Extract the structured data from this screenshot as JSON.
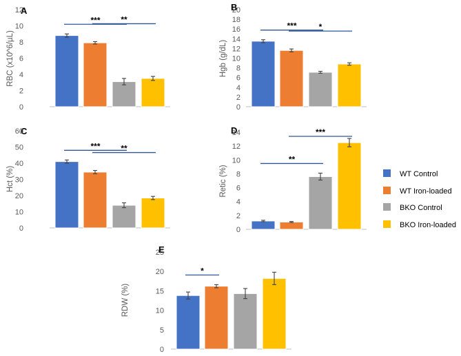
{
  "colors": {
    "WT Control": "#4472c4",
    "WT Iron-loaded": "#ed7d31",
    "BKO Control": "#a5a5a5",
    "BKO Iron-loaded": "#ffc000",
    "bar_outline": "#ffffff",
    "sig_line": "#2f5597"
  },
  "legend": {
    "entries": [
      "WT Control",
      "WT Iron-loaded",
      "BKO Control",
      "BKO Iron-loaded"
    ]
  },
  "chart_data": [
    {
      "panel": "A",
      "type": "bar",
      "ylabel": "RBC (x10^6/µL)",
      "ylim": [
        0,
        12
      ],
      "yticks": [
        0,
        2,
        4,
        6,
        8,
        10,
        12
      ],
      "categories": [
        "WT Control",
        "WT Iron-loaded",
        "BKO Control",
        "BKO Iron-loaded"
      ],
      "values": [
        8.8,
        7.9,
        3.1,
        3.5
      ],
      "errors": [
        0.2,
        0.15,
        0.4,
        0.25
      ],
      "significance": [
        {
          "from": 0,
          "to": 2,
          "label": "***"
        },
        {
          "from": 1,
          "to": 3,
          "label": "**"
        }
      ]
    },
    {
      "panel": "B",
      "type": "bar",
      "ylabel": "Hgb (g/dL)",
      "ylim": [
        0,
        20
      ],
      "yticks": [
        0,
        2,
        4,
        6,
        8,
        10,
        12,
        14,
        16,
        18,
        20
      ],
      "categories": [
        "WT Control",
        "WT Iron-loaded",
        "BKO Control",
        "BKO Iron-loaded"
      ],
      "values": [
        13.5,
        11.6,
        7.1,
        8.8
      ],
      "errors": [
        0.3,
        0.3,
        0.2,
        0.25
      ],
      "significance": [
        {
          "from": 0,
          "to": 2,
          "label": "***"
        },
        {
          "from": 1,
          "to": 3,
          "label": "*"
        }
      ]
    },
    {
      "panel": "C",
      "type": "bar",
      "ylabel": "Hct (%)",
      "ylim": [
        0,
        60
      ],
      "yticks": [
        0,
        10,
        20,
        30,
        40,
        50,
        60
      ],
      "categories": [
        "WT Control",
        "WT Iron-loaded",
        "BKO Control",
        "BKO Iron-loaded"
      ],
      "values": [
        41,
        34.5,
        14,
        18.5
      ],
      "errors": [
        1,
        1,
        1.5,
        1
      ],
      "significance": [
        {
          "from": 0,
          "to": 2,
          "label": "***"
        },
        {
          "from": 1,
          "to": 3,
          "label": "**"
        }
      ]
    },
    {
      "panel": "D",
      "type": "bar",
      "ylabel": "Retic (%)",
      "ylim": [
        0,
        14
      ],
      "yticks": [
        0,
        2,
        4,
        6,
        8,
        10,
        12,
        14
      ],
      "categories": [
        "WT Control",
        "WT Iron-loaded",
        "BKO Control",
        "BKO Iron-loaded"
      ],
      "values": [
        1.2,
        1.05,
        7.6,
        12.5
      ],
      "errors": [
        0.1,
        0.08,
        0.5,
        0.6
      ],
      "significance": [
        {
          "from": 0,
          "to": 2,
          "label": "**"
        },
        {
          "from": 1,
          "to": 3,
          "label": "***"
        }
      ]
    },
    {
      "panel": "E",
      "type": "bar",
      "ylabel": "RDW (%)",
      "ylim": [
        0,
        25
      ],
      "yticks": [
        0,
        5,
        10,
        15,
        20,
        25
      ],
      "categories": [
        "WT Control",
        "WT Iron-loaded",
        "BKO Control",
        "BKO Iron-loaded"
      ],
      "values": [
        13.8,
        16.2,
        14.3,
        18.2
      ],
      "errors": [
        0.9,
        0.4,
        1.3,
        1.6
      ],
      "significance": [
        {
          "from": 0,
          "to": 1,
          "label": "*"
        }
      ]
    }
  ]
}
